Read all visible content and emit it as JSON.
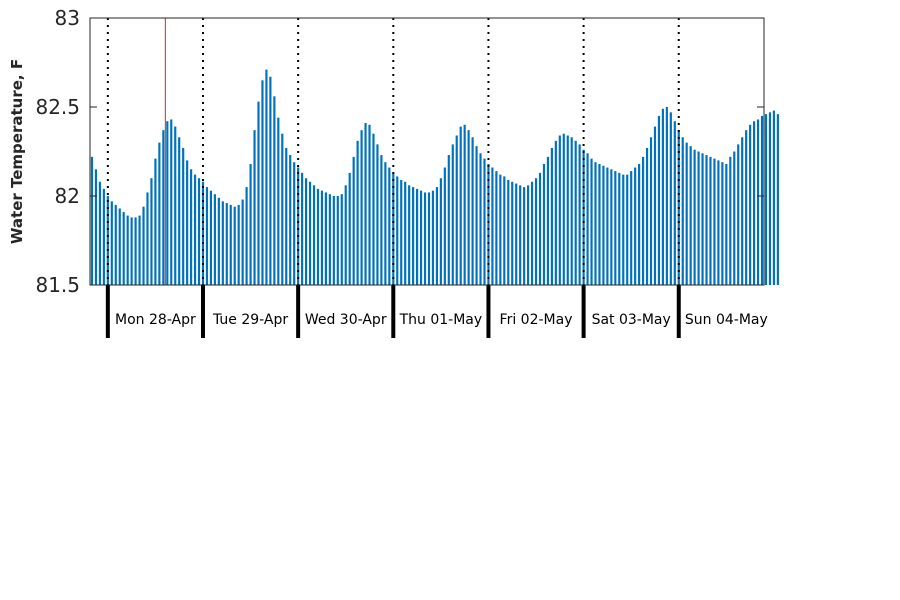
{
  "chart_data": {
    "type": "bar",
    "title": "",
    "xlabel": "",
    "ylabel": "Water Temperature, F",
    "ylim": [
      81.5,
      83
    ],
    "yticks": [
      "81.5",
      "82",
      "82.5",
      "83"
    ],
    "x_unit": "hour",
    "x_range_hours": [
      -4.5,
      165.5
    ],
    "grid": false,
    "series": [
      {
        "color": "#0072BD",
        "hour_start": -4,
        "values": [
          82.22,
          82.15,
          82.08,
          82.04,
          82.0,
          81.97,
          81.95,
          81.93,
          81.91,
          81.89,
          81.88,
          81.88,
          81.89,
          81.94,
          82.02,
          82.1,
          82.21,
          82.3,
          82.37,
          82.42,
          82.43,
          82.39,
          82.33,
          82.27,
          82.2,
          82.15,
          82.12,
          82.1,
          82.08,
          82.05,
          82.03,
          82.01,
          81.99,
          81.97,
          81.96,
          81.95,
          81.94,
          81.95,
          81.98,
          82.05,
          82.18,
          82.37,
          82.53,
          82.65,
          82.71,
          82.67,
          82.56,
          82.44,
          82.35,
          82.27,
          82.23,
          82.19,
          82.16,
          82.13,
          82.1,
          82.08,
          82.06,
          82.04,
          82.03,
          82.02,
          82.01,
          82.0,
          82.0,
          82.01,
          82.06,
          82.13,
          82.22,
          82.31,
          82.37,
          82.41,
          82.4,
          82.35,
          82.29,
          82.23,
          82.19,
          82.16,
          82.13,
          82.11,
          82.09,
          82.08,
          82.06,
          82.05,
          82.04,
          82.03,
          82.02,
          82.02,
          82.03,
          82.05,
          82.1,
          82.16,
          82.23,
          82.29,
          82.34,
          82.39,
          82.4,
          82.37,
          82.33,
          82.28,
          82.24,
          82.21,
          82.18,
          82.16,
          82.14,
          82.12,
          82.11,
          82.09,
          82.08,
          82.07,
          82.06,
          82.05,
          82.06,
          82.08,
          82.1,
          82.13,
          82.18,
          82.22,
          82.27,
          82.31,
          82.34,
          82.35,
          82.34,
          82.33,
          82.31,
          82.29,
          82.26,
          82.24,
          82.21,
          82.19,
          82.18,
          82.17,
          82.16,
          82.15,
          82.14,
          82.13,
          82.12,
          82.12,
          82.14,
          82.16,
          82.18,
          82.22,
          82.27,
          82.33,
          82.39,
          82.45,
          82.49,
          82.5,
          82.47,
          82.42,
          82.37,
          82.33,
          82.3,
          82.28,
          82.26,
          82.25,
          82.24,
          82.23,
          82.22,
          82.21,
          82.2,
          82.19,
          82.18,
          82.22,
          82.25,
          82.29,
          82.33,
          82.37,
          82.4,
          82.42,
          82.43,
          82.45,
          82.46,
          82.47,
          82.48,
          82.46
        ]
      }
    ],
    "day_boundaries_hours": [
      0,
      24,
      48,
      72,
      96,
      120,
      144
    ],
    "day_labels": [
      "Mon 28-Apr",
      "Tue 29-Apr",
      "Wed 30-Apr",
      "Thu 01-May",
      "Fri 02-May",
      "Sat 03-May",
      "Sun 04-May"
    ],
    "current_time_hour": 14.5,
    "current_time_color": "#D62728",
    "day_line_color": "#000000"
  }
}
